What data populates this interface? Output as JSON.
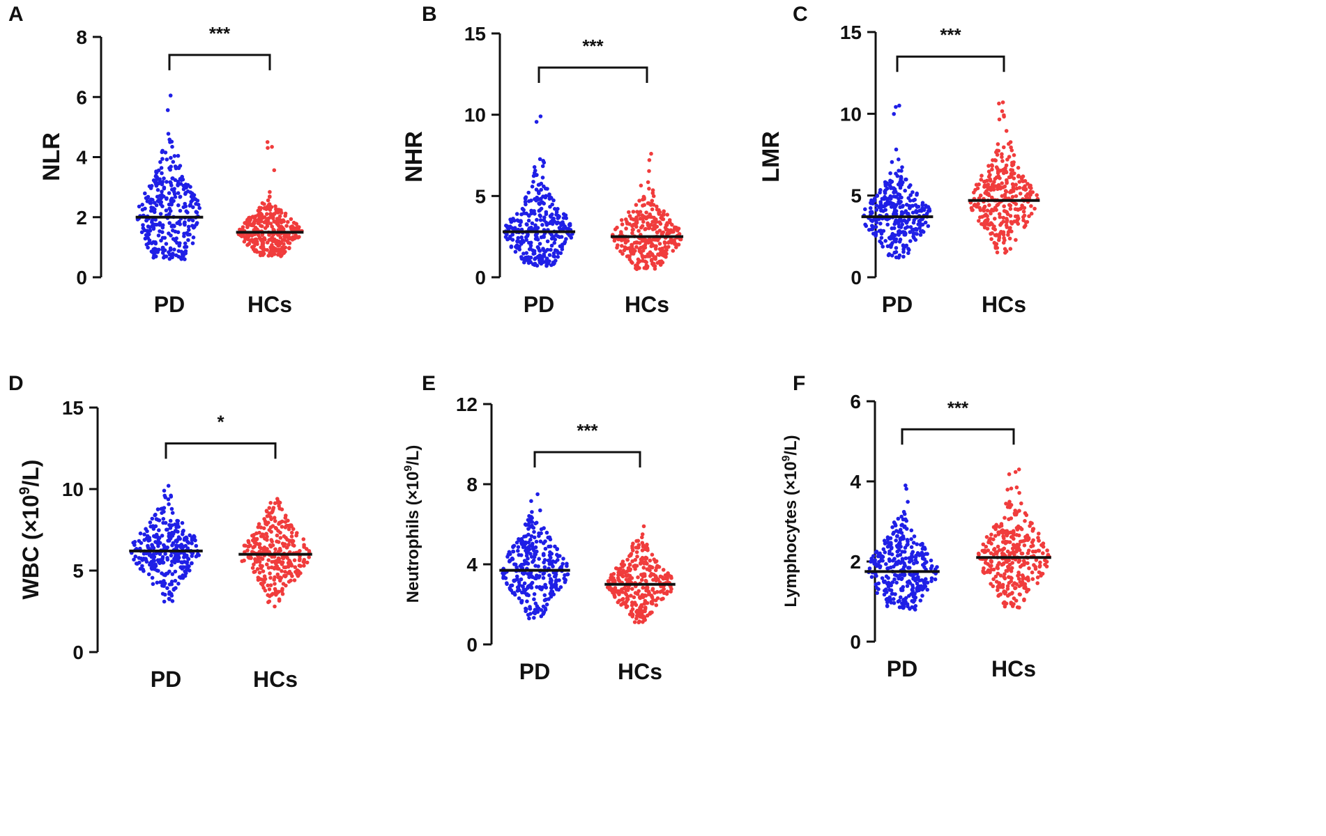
{
  "colors": {
    "PD": "#1f1fe6",
    "HCs": "#f03c3c",
    "axis": "#111111"
  },
  "chart_data": [
    {
      "panel": "A",
      "type": "scatter",
      "subtype": "dot-plot",
      "ylabel": "NLR",
      "ylabel_sup": "",
      "ylabel_post": "",
      "categories": [
        "PD",
        "HCs"
      ],
      "ylim": [
        0,
        8
      ],
      "yticks": [
        "0",
        "2",
        "4",
        "6",
        "8"
      ],
      "ytick_values": [
        0,
        2,
        4,
        6,
        8
      ],
      "series": [
        {
          "name": "PD",
          "median": 2.0,
          "min": 0.6,
          "max": 6.05,
          "q1": 1.4,
          "q3": 2.8
        },
        {
          "name": "HCs",
          "median": 1.5,
          "min": 0.7,
          "max": 4.5,
          "q1": 1.2,
          "q3": 1.85
        }
      ],
      "significance": "***",
      "bracket_y": 7.4
    },
    {
      "panel": "B",
      "type": "scatter",
      "subtype": "dot-plot",
      "ylabel": "NHR",
      "ylabel_sup": "",
      "ylabel_post": "",
      "categories": [
        "PD",
        "HCs"
      ],
      "ylim": [
        0,
        15
      ],
      "yticks": [
        "0",
        "5",
        "10",
        "15"
      ],
      "ytick_values": [
        0,
        5,
        10,
        15
      ],
      "series": [
        {
          "name": "PD",
          "median": 2.8,
          "min": 0.7,
          "max": 9.9,
          "q1": 2.0,
          "q3": 3.8
        },
        {
          "name": "HCs",
          "median": 2.5,
          "min": 0.5,
          "max": 7.6,
          "q1": 1.7,
          "q3": 3.3
        }
      ],
      "significance": "***",
      "bracket_y": 12.9
    },
    {
      "panel": "C",
      "type": "scatter",
      "subtype": "dot-plot",
      "ylabel": "LMR",
      "ylabel_sup": "",
      "ylabel_post": "",
      "categories": [
        "PD",
        "HCs"
      ],
      "ylim": [
        0,
        15
      ],
      "yticks": [
        "0",
        "5",
        "10",
        "15"
      ],
      "ytick_values": [
        0,
        5,
        10,
        15
      ],
      "series": [
        {
          "name": "PD",
          "median": 3.7,
          "min": 1.2,
          "max": 10.5,
          "q1": 2.9,
          "q3": 4.6
        },
        {
          "name": "HCs",
          "median": 4.7,
          "min": 1.5,
          "max": 10.7,
          "q1": 3.8,
          "q3": 5.8
        }
      ],
      "significance": "***",
      "bracket_y": 13.5
    },
    {
      "panel": "D",
      "type": "scatter",
      "subtype": "dot-plot",
      "ylabel": "WBC (×10",
      "ylabel_sup": "9",
      "ylabel_post": "/L)",
      "categories": [
        "PD",
        "HCs"
      ],
      "ylim": [
        0,
        15
      ],
      "yticks": [
        "0",
        "5",
        "10",
        "15"
      ],
      "ytick_values": [
        0,
        5,
        10,
        15
      ],
      "series": [
        {
          "name": "PD",
          "median": 6.2,
          "min": 3.1,
          "max": 10.2,
          "q1": 5.3,
          "q3": 7.0
        },
        {
          "name": "HCs",
          "median": 6.0,
          "min": 2.8,
          "max": 9.4,
          "q1": 5.0,
          "q3": 6.8
        }
      ],
      "significance": "*",
      "bracket_y": 12.8
    },
    {
      "panel": "E",
      "type": "scatter",
      "subtype": "dot-plot",
      "ylabel": "Neutrophils (×10",
      "ylabel_sup": "9",
      "ylabel_post": "/L)",
      "categories": [
        "PD",
        "HCs"
      ],
      "ylim": [
        0,
        12
      ],
      "yticks": [
        "0",
        "4",
        "8",
        "12"
      ],
      "ytick_values": [
        0,
        4,
        8,
        12
      ],
      "series": [
        {
          "name": "PD",
          "median": 3.7,
          "min": 1.3,
          "max": 7.5,
          "q1": 2.9,
          "q3": 4.5
        },
        {
          "name": "HCs",
          "median": 3.0,
          "min": 1.1,
          "max": 5.9,
          "q1": 2.4,
          "q3": 3.6
        }
      ],
      "significance": "***",
      "bracket_y": 9.6
    },
    {
      "panel": "F",
      "type": "scatter",
      "subtype": "dot-plot",
      "ylabel": "Lymphocytes (×10",
      "ylabel_sup": "9",
      "ylabel_post": "/L)",
      "categories": [
        "PD",
        "HCs"
      ],
      "ylim": [
        0,
        6
      ],
      "yticks": [
        "0",
        "2",
        "4",
        "6"
      ],
      "ytick_values": [
        0,
        2,
        4,
        6
      ],
      "series": [
        {
          "name": "PD",
          "median": 1.75,
          "min": 0.8,
          "max": 3.9,
          "q1": 1.4,
          "q3": 2.2
        },
        {
          "name": "HCs",
          "median": 2.1,
          "min": 0.85,
          "max": 4.3,
          "q1": 1.7,
          "q3": 2.6
        }
      ],
      "significance": "***",
      "bracket_y": 5.3
    }
  ]
}
